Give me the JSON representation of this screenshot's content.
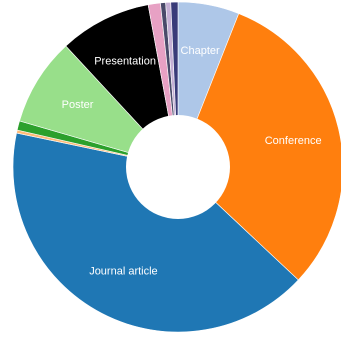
{
  "chart_data": {
    "type": "pie",
    "title": "",
    "donut": true,
    "start": "top, clockwise",
    "slices": [
      {
        "label": "Chapter",
        "value": 6.0,
        "color": "#aec7e8",
        "show_label": true
      },
      {
        "label": "Conference",
        "value": 31.0,
        "color": "#ff7f0e",
        "show_label": true
      },
      {
        "label": "Journal article",
        "value": 41.3,
        "color": "#1f77b4",
        "show_label": true
      },
      {
        "label": "",
        "value": 0.3,
        "color": "#ffbb78",
        "show_label": false
      },
      {
        "label": "",
        "value": 0.9,
        "color": "#2ca02c",
        "show_label": false
      },
      {
        "label": "Poster",
        "value": 8.6,
        "color": "#98df8a",
        "show_label": true
      },
      {
        "label": "Presentation",
        "value": 9.0,
        "color": "#000000",
        "show_label": true
      },
      {
        "label": "",
        "value": 1.2,
        "color": "#e7a1c4",
        "show_label": false
      },
      {
        "label": "",
        "value": 0.5,
        "color": "#4a4a6a",
        "show_label": false
      },
      {
        "label": "",
        "value": 0.5,
        "color": "#c5b0d5",
        "show_label": false
      },
      {
        "label": "",
        "value": 0.7,
        "color": "#393b79",
        "show_label": false
      }
    ]
  }
}
